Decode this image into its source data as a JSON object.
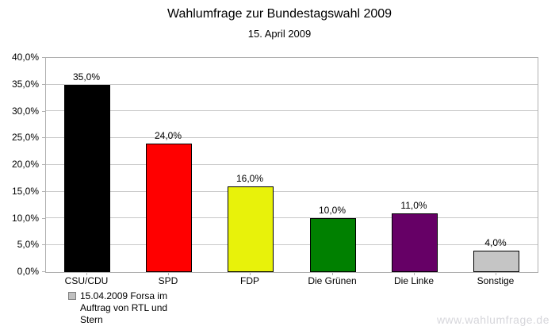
{
  "title": "Wahlumfrage zur Bundestagswahl 2009",
  "subtitle": "15. April 2009",
  "watermark": "www.wahlumfrage.de",
  "legend": {
    "swatch_color": "#c0c0c0",
    "swatch_border": "#7f7f7f",
    "lines": [
      "15.04.2009 Forsa im",
      "Auftrag von RTL und",
      "Stern"
    ]
  },
  "chart_data": {
    "type": "bar",
    "title": "Wahlumfrage zur Bundestagswahl 2009",
    "subtitle": "15. April 2009",
    "categories": [
      "CSU/CDU",
      "SPD",
      "FDP",
      "Die Grünen",
      "Die Linke",
      "Sonstige"
    ],
    "values": [
      35.0,
      24.0,
      16.0,
      10.0,
      11.0,
      4.0
    ],
    "value_labels": [
      "35,0%",
      "24,0%",
      "16,0%",
      "10,0%",
      "11,0%",
      "4,0%"
    ],
    "bar_colors": [
      "#000000",
      "#ff0000",
      "#e8f20a",
      "#008000",
      "#660066",
      "#c5c5c5"
    ],
    "bar_border_color": "#000000",
    "xlabel": "",
    "ylabel": "",
    "ylim": [
      0,
      40
    ],
    "ytick_step": 5,
    "ytick_labels": [
      "0,0%",
      "5,0%",
      "10,0%",
      "15,0%",
      "20,0%",
      "25,0%",
      "30,0%",
      "35,0%",
      "40,0%"
    ],
    "grid": true,
    "gridline_color": "#c8c8c8",
    "axis_color": "#b0b0b0",
    "legend_position": "bottom-left",
    "legend_entries": [
      "15.04.2009 Forsa im Auftrag von RTL und Stern"
    ]
  }
}
